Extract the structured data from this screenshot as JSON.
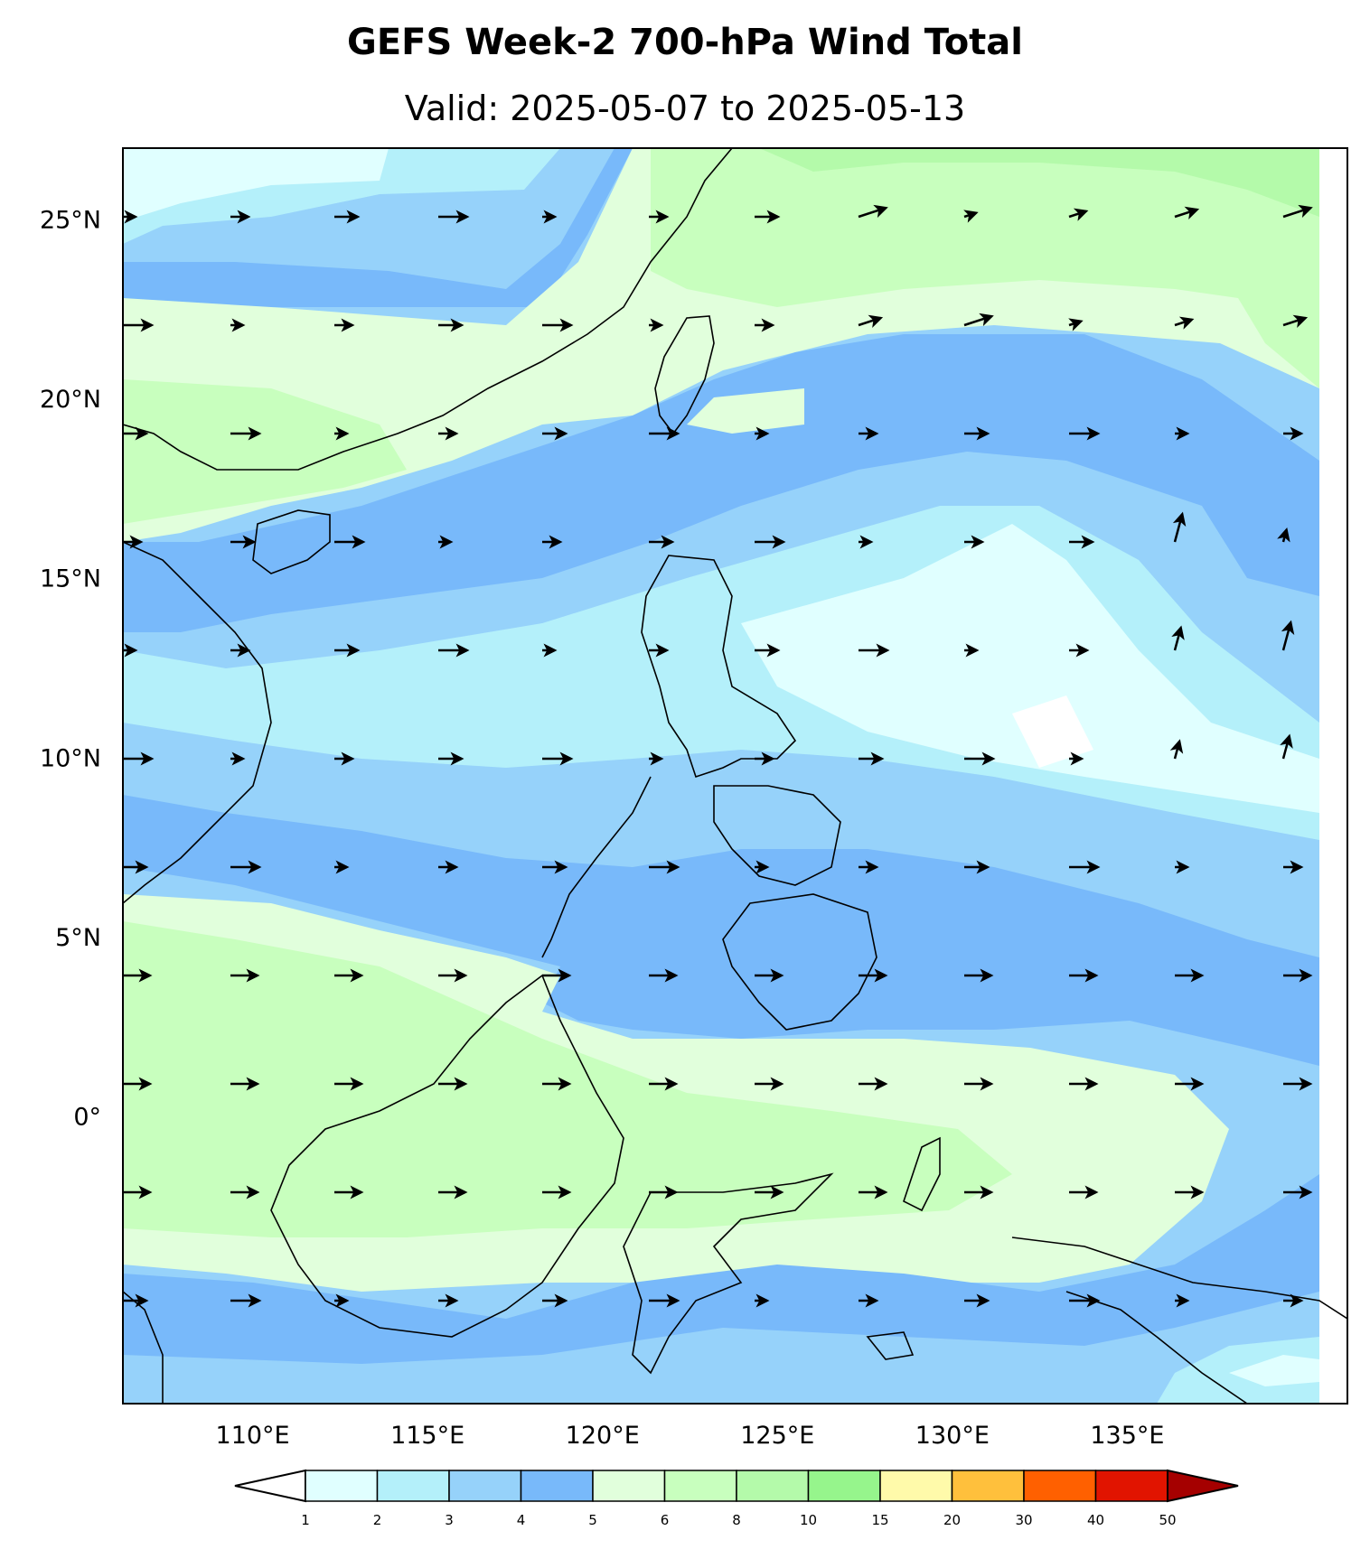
{
  "title": "GEFS Week-2 700-hPa Wind Total",
  "subtitle": "Valid: 2025-05-07 to 2025-05-13",
  "map": {
    "extent": {
      "lon_min": 105,
      "lon_max": 140,
      "lat_min": -5,
      "lat_max": 30
    },
    "lat_ticks": [
      {
        "lat": 25,
        "label": "25°N"
      },
      {
        "lat": 20,
        "label": "20°N"
      },
      {
        "lat": 15,
        "label": "15°N"
      },
      {
        "lat": 10,
        "label": "10°N"
      },
      {
        "lat": 5,
        "label": "5°N"
      },
      {
        "lat": 0,
        "label": "0°"
      }
    ],
    "lon_ticks": [
      {
        "lon": 110,
        "label": "110°E"
      },
      {
        "lon": 115,
        "label": "115°E"
      },
      {
        "lon": 120,
        "label": "120°E"
      },
      {
        "lon": 125,
        "label": "125°E"
      },
      {
        "lon": 130,
        "label": "130°E"
      },
      {
        "lon": 135,
        "label": "135°E"
      }
    ]
  },
  "colorbar": {
    "ticks": [
      "1",
      "2",
      "3",
      "4",
      "5",
      "6",
      "8",
      "10",
      "15",
      "20",
      "30",
      "40",
      "50"
    ],
    "colors": [
      "#e0ffff",
      "#b4f0fa",
      "#96d2fa",
      "#78b9fa",
      "#e1ffdc",
      "#c8ffbe",
      "#b4faaa",
      "#96f58c",
      "#fffaaa",
      "#ffc03c",
      "#ff6000",
      "#e11400",
      "#a50000"
    ],
    "under_color": "#ffffff",
    "over_color": "#a50000"
  }
}
